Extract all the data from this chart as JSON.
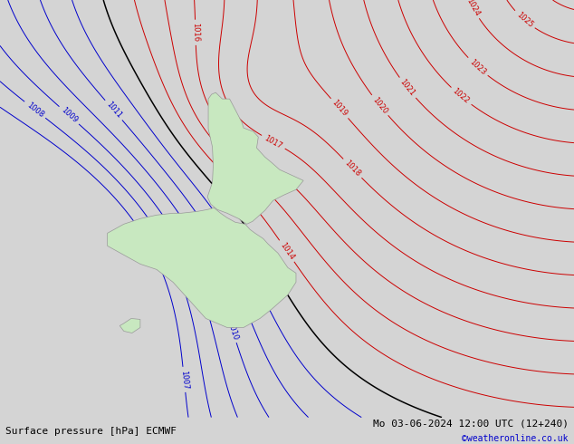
{
  "title_left": "Surface pressure [hPa] ECMWF",
  "title_right": "Mo 03-06-2024 12:00 UTC (12+240)",
  "copyright": "©weatheronline.co.uk",
  "bg_color": "#d4d4d4",
  "land_color": "#c8e8c0",
  "coast_color": "#999999",
  "isobar_color_high": "#cc0000",
  "isobar_color_low": "#0000cc",
  "isobar_color_ref": "#000000",
  "ref_pressure": 1013,
  "font_size_labels": 6,
  "font_size_title": 8,
  "lon_min": 160.0,
  "lon_max": 195.0,
  "lat_min": -52.0,
  "lat_max": -29.0
}
